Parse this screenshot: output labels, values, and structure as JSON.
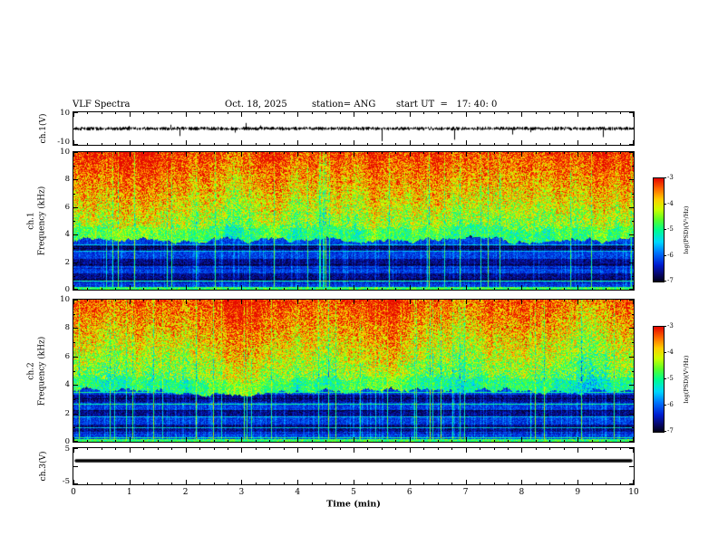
{
  "header": {
    "title": "VLF Spectra",
    "date": "Oct. 18, 2025",
    "station": "station= ANG",
    "start_ut": "start UT  =   17: 40: 0"
  },
  "xaxis": {
    "label": "Time (min)",
    "min": 0,
    "max": 10,
    "major_ticks": [
      0,
      1,
      2,
      3,
      4,
      5,
      6,
      7,
      8,
      9,
      10
    ],
    "minor_step": 0.25
  },
  "panels": {
    "wave1": {
      "ylabel": "ch.1(V)",
      "ymin": -10,
      "ymax": 10,
      "tick_labels": [
        10,
        -10
      ]
    },
    "spec1": {
      "ylabel_line1": "ch.1",
      "ylabel_line2": "Frequency (kHz)",
      "ymin": 0,
      "ymax": 10,
      "major_ticks": [
        0,
        2,
        4,
        6,
        8,
        10
      ],
      "minor_step": 1
    },
    "spec2": {
      "ylabel_line1": "ch.2",
      "ylabel_line2": "Frequency (kHz)",
      "ymin": 0,
      "ymax": 10,
      "major_ticks": [
        0,
        2,
        4,
        6,
        8,
        10
      ],
      "minor_step": 1
    },
    "wave3": {
      "ylabel": "ch.3(V)",
      "ymin": -5,
      "ymax": 5,
      "tick_labels": [
        5,
        -5
      ]
    }
  },
  "colorbar": {
    "label": "log(PSD)(V²/Hz)",
    "min": -7,
    "max": -3,
    "ticks": [
      -3,
      -4,
      -5,
      -6,
      -7
    ]
  },
  "style": {
    "frame_color": "#000000",
    "background": "#ffffff",
    "colormap": [
      [
        0.0,
        2,
        2,
        30
      ],
      [
        0.07,
        8,
        8,
        110
      ],
      [
        0.16,
        0,
        30,
        210
      ],
      [
        0.28,
        0,
        120,
        255
      ],
      [
        0.38,
        0,
        215,
        255
      ],
      [
        0.5,
        0,
        255,
        140
      ],
      [
        0.6,
        90,
        255,
        40
      ],
      [
        0.7,
        205,
        255,
        0
      ],
      [
        0.8,
        255,
        205,
        0
      ],
      [
        0.9,
        255,
        105,
        0
      ],
      [
        1.0,
        230,
        10,
        0
      ]
    ]
  },
  "chart_data": [
    {
      "id": "wave1",
      "type": "line",
      "title": "ch.1 broadband VLF waveform",
      "xlabel": "Time (min)",
      "ylabel": "ch.1(V)",
      "xlim": [
        0,
        10
      ],
      "ylim": [
        -10,
        10
      ],
      "baseline_v": 0,
      "noise_amplitude_v": 1.2,
      "spike_min_v": -9,
      "spikes_mostly_downward": true,
      "seed": 7
    },
    {
      "id": "spec1",
      "type": "heatmap",
      "title": "ch.1 spectrogram",
      "xlabel": "Time (min)",
      "ylabel": "Frequency (kHz)",
      "zlabel": "log(PSD)(V²/Hz)",
      "xlim": [
        0,
        10
      ],
      "ylim": [
        0,
        10
      ],
      "zlim": [
        -7,
        -3
      ],
      "seed": 11,
      "bands": [
        {
          "name": "high",
          "fmin": 4.5,
          "fmax": 10,
          "psd_log": [
            -4.5,
            -3.1
          ]
        },
        {
          "name": "transition",
          "fmin": 3.6,
          "fmax": 4.5,
          "psd_log": [
            -5.2,
            -4.6
          ]
        },
        {
          "name": "low",
          "fmin": 0,
          "fmax": 3.6,
          "psd_log": [
            -7,
            -5.6
          ],
          "dark_band_period_khz": 1.05
        }
      ],
      "vertical_streaks": "frequent sferic vertical lines spanning all frequencies"
    },
    {
      "id": "spec2",
      "type": "heatmap",
      "title": "ch.2 spectrogram",
      "xlabel": "Time (min)",
      "ylabel": "Frequency (kHz)",
      "zlabel": "log(PSD)(V²/Hz)",
      "xlim": [
        0,
        10
      ],
      "ylim": [
        0,
        10
      ],
      "zlim": [
        -7,
        -3
      ],
      "seed": 23,
      "bands": [
        {
          "name": "high",
          "fmin": 4.5,
          "fmax": 10,
          "psd_log": [
            -4.5,
            -3.1
          ]
        },
        {
          "name": "transition",
          "fmin": 3.6,
          "fmax": 4.5,
          "psd_log": [
            -5.2,
            -4.6
          ]
        },
        {
          "name": "low",
          "fmin": 0,
          "fmax": 3.6,
          "psd_log": [
            -7,
            -5.6
          ],
          "dark_band_period_khz": 1.05
        }
      ],
      "vertical_streaks": "frequent sferic vertical lines spanning all frequencies"
    },
    {
      "id": "wave3",
      "type": "line",
      "title": "ch.3 waveform (flat)",
      "xlabel": "Time (min)",
      "ylabel": "ch.3(V)",
      "xlim": [
        0,
        10
      ],
      "ylim": [
        -5,
        5
      ],
      "constant_value": 1.5,
      "seed": 3
    }
  ]
}
